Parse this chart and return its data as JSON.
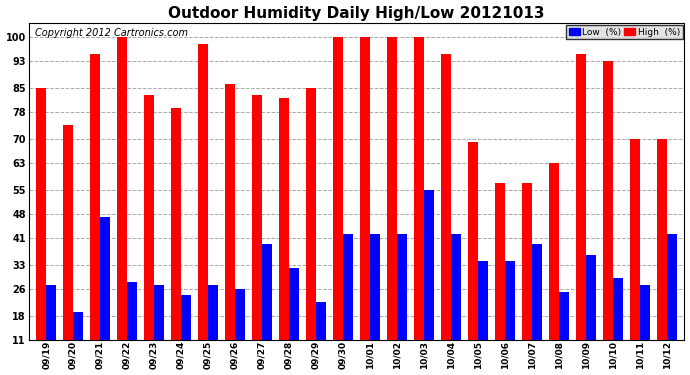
{
  "title": "Outdoor Humidity Daily High/Low 20121013",
  "copyright": "Copyright 2012 Cartronics.com",
  "legend_low": "Low  (%)",
  "legend_high": "High  (%)",
  "dates": [
    "09/19",
    "09/20",
    "09/21",
    "09/22",
    "09/23",
    "09/24",
    "09/25",
    "09/26",
    "09/27",
    "09/28",
    "09/29",
    "09/30",
    "10/01",
    "10/02",
    "10/03",
    "10/04",
    "10/05",
    "10/06",
    "10/07",
    "10/08",
    "10/09",
    "10/10",
    "10/11",
    "10/12"
  ],
  "high": [
    85,
    74,
    95,
    100,
    83,
    79,
    98,
    86,
    83,
    82,
    85,
    100,
    100,
    100,
    100,
    95,
    69,
    57,
    57,
    63,
    95,
    93,
    70,
    70
  ],
  "low": [
    27,
    19,
    47,
    28,
    27,
    24,
    27,
    26,
    39,
    32,
    22,
    42,
    42,
    42,
    55,
    42,
    34,
    34,
    39,
    25,
    36,
    29,
    27,
    42
  ],
  "high_color": "#ff0000",
  "low_color": "#0000ff",
  "bg_color": "#ffffff",
  "grid_color": "#aaaaaa",
  "yticks": [
    11,
    18,
    26,
    33,
    41,
    48,
    55,
    63,
    70,
    78,
    85,
    93,
    100
  ],
  "ymin": 11,
  "ymax": 104,
  "title_fontsize": 11,
  "copyright_fontsize": 7,
  "bar_width": 0.38,
  "figwidth": 6.9,
  "figheight": 3.75,
  "dpi": 100
}
